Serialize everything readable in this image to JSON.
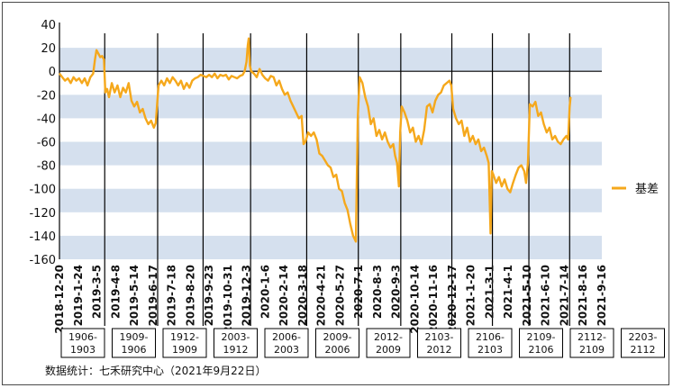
{
  "chart_data": {
    "type": "line",
    "title": "",
    "xlabel": "",
    "ylabel": "",
    "ylim": [
      -160,
      40
    ],
    "yticks": [
      40,
      20,
      0,
      -20,
      -40,
      -60,
      -80,
      -100,
      -120,
      -140,
      -160
    ],
    "grid": "horizontal-bands",
    "legend_position": "right",
    "x": [
      "2018-12-20",
      "2019-1-24",
      "2019-3-5",
      "2019-4-8",
      "2019-5-14",
      "2019-6-17",
      "2019-7-18",
      "2019-8-20",
      "2019-9-23",
      "2019-10-31",
      "2019-12-3",
      "2020-1-6",
      "2020-2-14",
      "2020-3-18",
      "2020-4-21",
      "2020-5-27",
      "2020-7-1",
      "2020-8-3",
      "2020-9-3",
      "2020-10-14",
      "2020-11-16",
      "2020-12-17",
      "2021-1-20",
      "2021-3-1",
      "2021-4-1",
      "2021-5-10",
      "2021-6-10",
      "2021-7-14",
      "2021-8-16",
      "2021-9-16"
    ],
    "series": [
      {
        "name": "基差",
        "color": "#F5A81C",
        "values": [
          [
            0,
            -2
          ],
          [
            0.15,
            -5
          ],
          [
            0.3,
            -8
          ],
          [
            0.45,
            -6
          ],
          [
            0.6,
            -10
          ],
          [
            0.75,
            -5
          ],
          [
            0.9,
            -8
          ],
          [
            1.05,
            -6
          ],
          [
            1.2,
            -10
          ],
          [
            1.35,
            -6
          ],
          [
            1.5,
            -12
          ],
          [
            1.65,
            -5
          ],
          [
            1.8,
            -2
          ],
          [
            1.9,
            10
          ],
          [
            1.98,
            18
          ],
          [
            2.08,
            15
          ],
          [
            2.18,
            12
          ],
          [
            2.28,
            13
          ],
          [
            2.38,
            10
          ],
          [
            2.45,
            -18
          ],
          [
            2.55,
            -15
          ],
          [
            2.65,
            -22
          ],
          [
            2.8,
            -10
          ],
          [
            2.95,
            -18
          ],
          [
            3.1,
            -12
          ],
          [
            3.25,
            -22
          ],
          [
            3.4,
            -14
          ],
          [
            3.55,
            -18
          ],
          [
            3.7,
            -10
          ],
          [
            3.85,
            -25
          ],
          [
            4.0,
            -30
          ],
          [
            4.15,
            -26
          ],
          [
            4.3,
            -35
          ],
          [
            4.45,
            -32
          ],
          [
            4.6,
            -40
          ],
          [
            4.75,
            -45
          ],
          [
            4.9,
            -42
          ],
          [
            5.05,
            -48
          ],
          [
            5.15,
            -44
          ],
          [
            5.22,
            -28
          ],
          [
            5.3,
            -12
          ],
          [
            5.45,
            -8
          ],
          [
            5.6,
            -12
          ],
          [
            5.75,
            -6
          ],
          [
            5.9,
            -10
          ],
          [
            6.05,
            -5
          ],
          [
            6.2,
            -8
          ],
          [
            6.35,
            -12
          ],
          [
            6.5,
            -8
          ],
          [
            6.65,
            -15
          ],
          [
            6.8,
            -10
          ],
          [
            6.95,
            -14
          ],
          [
            7.1,
            -8
          ],
          [
            7.25,
            -6
          ],
          [
            7.4,
            -5
          ],
          [
            7.55,
            -3
          ],
          [
            7.7,
            -4
          ],
          [
            7.85,
            -5
          ],
          [
            8.0,
            -3
          ],
          [
            8.15,
            -5
          ],
          [
            8.3,
            -2
          ],
          [
            8.45,
            -6
          ],
          [
            8.6,
            -3
          ],
          [
            8.75,
            -4
          ],
          [
            8.9,
            -3
          ],
          [
            9.05,
            -7
          ],
          [
            9.2,
            -4
          ],
          [
            9.35,
            -5
          ],
          [
            9.5,
            -6
          ],
          [
            9.65,
            -4
          ],
          [
            9.8,
            -3
          ],
          [
            9.9,
            0
          ],
          [
            10.0,
            8
          ],
          [
            10.07,
            22
          ],
          [
            10.12,
            28
          ],
          [
            10.18,
            5
          ],
          [
            10.25,
            0
          ],
          [
            10.4,
            -2
          ],
          [
            10.55,
            -5
          ],
          [
            10.7,
            2
          ],
          [
            10.85,
            -3
          ],
          [
            11.0,
            -6
          ],
          [
            11.15,
            -8
          ],
          [
            11.3,
            -4
          ],
          [
            11.45,
            -5
          ],
          [
            11.6,
            -12
          ],
          [
            11.75,
            -8
          ],
          [
            11.9,
            -15
          ],
          [
            12.05,
            -20
          ],
          [
            12.2,
            -18
          ],
          [
            12.35,
            -25
          ],
          [
            12.5,
            -30
          ],
          [
            12.65,
            -35
          ],
          [
            12.8,
            -40
          ],
          [
            12.95,
            -38
          ],
          [
            13.05,
            -62
          ],
          [
            13.15,
            -60
          ],
          [
            13.3,
            -52
          ],
          [
            13.45,
            -55
          ],
          [
            13.6,
            -52
          ],
          [
            13.75,
            -58
          ],
          [
            13.9,
            -70
          ],
          [
            14.05,
            -72
          ],
          [
            14.2,
            -76
          ],
          [
            14.35,
            -80
          ],
          [
            14.5,
            -82
          ],
          [
            14.65,
            -90
          ],
          [
            14.8,
            -88
          ],
          [
            14.95,
            -100
          ],
          [
            15.1,
            -102
          ],
          [
            15.25,
            -112
          ],
          [
            15.4,
            -118
          ],
          [
            15.55,
            -130
          ],
          [
            15.7,
            -140
          ],
          [
            15.85,
            -145
          ],
          [
            15.95,
            -40
          ],
          [
            16.05,
            -5
          ],
          [
            16.2,
            -10
          ],
          [
            16.35,
            -22
          ],
          [
            16.5,
            -30
          ],
          [
            16.65,
            -45
          ],
          [
            16.8,
            -40
          ],
          [
            16.95,
            -55
          ],
          [
            17.1,
            -50
          ],
          [
            17.25,
            -58
          ],
          [
            17.4,
            -52
          ],
          [
            17.55,
            -60
          ],
          [
            17.7,
            -65
          ],
          [
            17.85,
            -62
          ],
          [
            17.95,
            -72
          ],
          [
            18.05,
            -78
          ],
          [
            18.15,
            -98
          ],
          [
            18.22,
            -52
          ],
          [
            18.3,
            -30
          ],
          [
            18.45,
            -35
          ],
          [
            18.6,
            -42
          ],
          [
            18.75,
            -52
          ],
          [
            18.9,
            -48
          ],
          [
            19.05,
            -60
          ],
          [
            19.2,
            -55
          ],
          [
            19.35,
            -62
          ],
          [
            19.5,
            -50
          ],
          [
            19.65,
            -30
          ],
          [
            19.8,
            -28
          ],
          [
            19.95,
            -35
          ],
          [
            20.1,
            -25
          ],
          [
            20.25,
            -20
          ],
          [
            20.4,
            -18
          ],
          [
            20.55,
            -12
          ],
          [
            20.7,
            -10
          ],
          [
            20.85,
            -8
          ],
          [
            20.95,
            -12
          ],
          [
            21.05,
            -32
          ],
          [
            21.2,
            -40
          ],
          [
            21.35,
            -45
          ],
          [
            21.5,
            -42
          ],
          [
            21.65,
            -55
          ],
          [
            21.8,
            -48
          ],
          [
            21.95,
            -60
          ],
          [
            22.1,
            -55
          ],
          [
            22.25,
            -62
          ],
          [
            22.4,
            -58
          ],
          [
            22.55,
            -68
          ],
          [
            22.7,
            -65
          ],
          [
            22.85,
            -72
          ],
          [
            22.95,
            -78
          ],
          [
            23.05,
            -138
          ],
          [
            23.12,
            -85
          ],
          [
            23.2,
            -88
          ],
          [
            23.35,
            -95
          ],
          [
            23.5,
            -90
          ],
          [
            23.65,
            -98
          ],
          [
            23.8,
            -92
          ],
          [
            23.95,
            -100
          ],
          [
            24.1,
            -103
          ],
          [
            24.25,
            -95
          ],
          [
            24.4,
            -88
          ],
          [
            24.55,
            -82
          ],
          [
            24.7,
            -80
          ],
          [
            24.85,
            -85
          ],
          [
            24.95,
            -95
          ],
          [
            25.05,
            -78
          ],
          [
            25.15,
            -28
          ],
          [
            25.3,
            -30
          ],
          [
            25.45,
            -26
          ],
          [
            25.6,
            -38
          ],
          [
            25.75,
            -35
          ],
          [
            25.9,
            -45
          ],
          [
            26.05,
            -52
          ],
          [
            26.2,
            -48
          ],
          [
            26.35,
            -58
          ],
          [
            26.5,
            -55
          ],
          [
            26.65,
            -60
          ],
          [
            26.8,
            -62
          ],
          [
            26.95,
            -58
          ],
          [
            27.1,
            -55
          ],
          [
            27.2,
            -58
          ],
          [
            27.28,
            -30
          ],
          [
            27.33,
            -22
          ]
        ]
      }
    ],
    "contract_labels": [
      "1906-1903",
      "1909-1906",
      "1912-1909",
      "2003-1912",
      "2006-2003",
      "2009-2006",
      "2012-2009",
      "2103-2012",
      "2106-2103",
      "2109-2106",
      "2112-2109",
      "2203-2112"
    ],
    "contract_label_lines": [
      [
        "1906-",
        "1903"
      ],
      [
        "1909-",
        "1906"
      ],
      [
        "1912-",
        "1909"
      ],
      [
        "2003-",
        "1912"
      ],
      [
        "2006-",
        "2003"
      ],
      [
        "2009-",
        "2006"
      ],
      [
        "2012-",
        "2009"
      ],
      [
        "2103-",
        "2012"
      ],
      [
        "2106-",
        "2103"
      ],
      [
        "2109-",
        "2106"
      ],
      [
        "2112-",
        "2109"
      ],
      [
        "2203-",
        "2112"
      ]
    ],
    "contract_breaks": [
      2.42,
      5.25,
      7.68,
      10.22,
      13.22,
      15.98,
      18.25,
      20.98,
      23.15,
      25.1,
      27.28
    ]
  },
  "legend": {
    "label": "基差",
    "color": "#F5A81C"
  },
  "source": "数据统计：七禾研究中心（2021年9月22日）",
  "colors": {
    "band": "#D5E0EE",
    "grid": "#ffffff",
    "axis": "#000000",
    "line": "#F5A81C"
  }
}
